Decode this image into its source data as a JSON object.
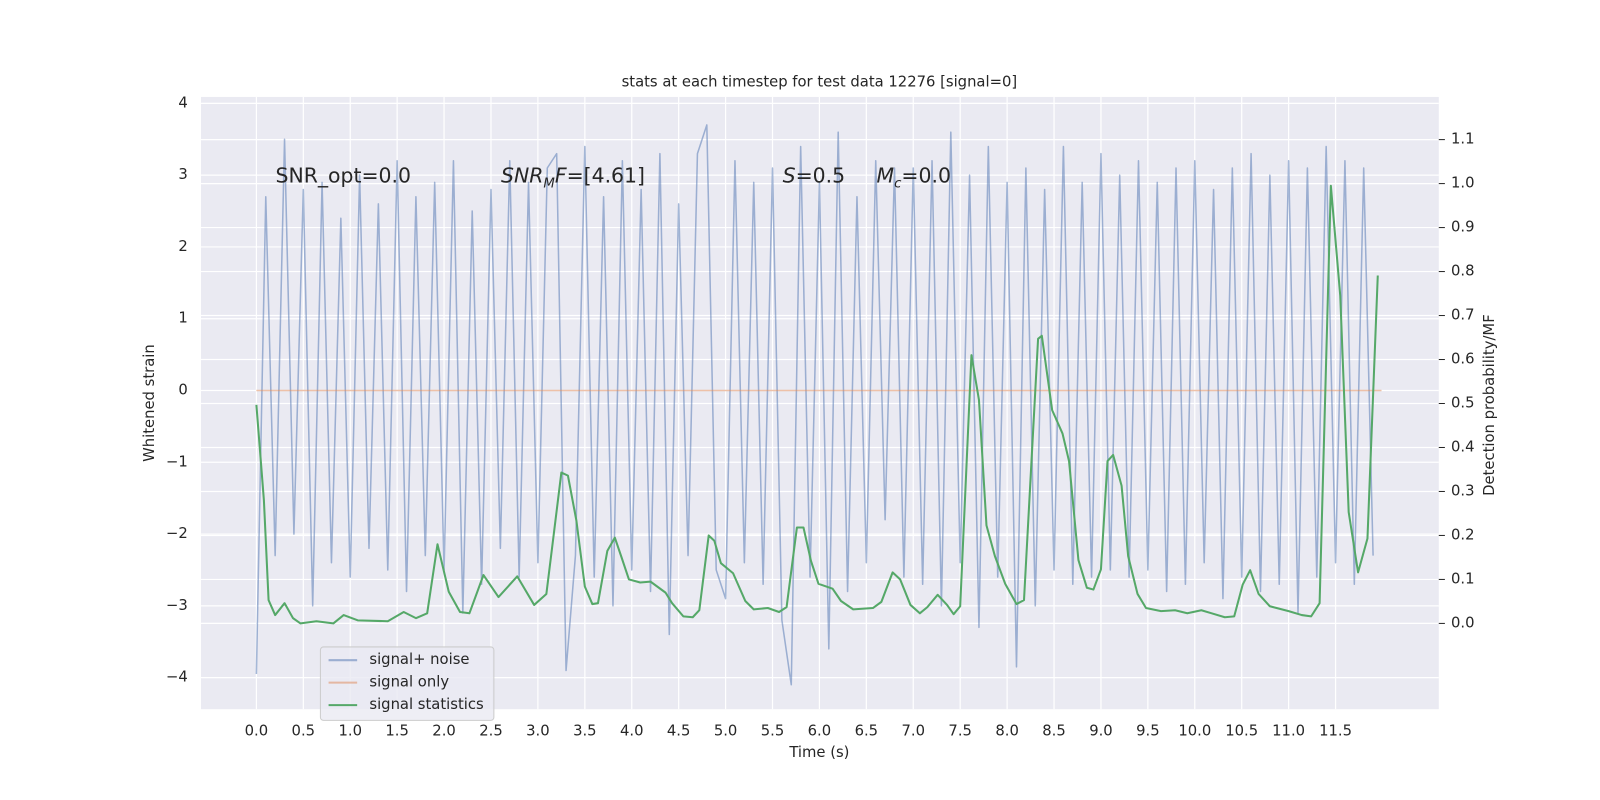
{
  "chart_data": {
    "type": "line",
    "title": "stats at each timestep for test data 12276 [signal=0]",
    "xlabel": "Time (s)",
    "ylabel": "Whitened strain",
    "y2label": "Detection probability/MF",
    "grid": true,
    "legend": "lower left",
    "xlim": [
      -0.59,
      12.6
    ],
    "ylim": [
      -4.44,
      4.09
    ],
    "y2lim": [
      -0.195,
      1.197
    ],
    "xticks": [
      {
        "value": 0,
        "label": "0.0"
      },
      0.5,
      {
        "value": 1,
        "label": "1.0"
      },
      1.5,
      {
        "value": 2,
        "label": "2.0"
      },
      2.5,
      {
        "value": 3,
        "label": "3.0"
      },
      3.5,
      {
        "value": 4,
        "label": "4.0"
      },
      4.5,
      {
        "value": 5,
        "label": "5.0"
      },
      5.5,
      {
        "value": 6,
        "label": "6.0"
      },
      6.5,
      {
        "value": 7,
        "label": "7.0"
      },
      7.5,
      {
        "value": 8,
        "label": "8.0"
      },
      8.5,
      {
        "value": 9,
        "label": "9.0"
      },
      9.5,
      {
        "value": 10,
        "label": "10.0"
      },
      10.5,
      {
        "value": 11,
        "label": "11.0"
      },
      11.5
    ],
    "yticks": [
      {
        "value": -4,
        "label": "−4"
      },
      {
        "value": -3,
        "label": "−3"
      },
      {
        "value": -2,
        "label": "−2"
      },
      {
        "value": -1,
        "label": "−1"
      },
      0,
      1,
      2,
      3,
      4
    ],
    "y2ticks": [
      {
        "value": 0,
        "label": "0.0"
      },
      0.1,
      0.2,
      0.3,
      0.4,
      0.5,
      0.6,
      0.7,
      0.8,
      0.9,
      {
        "value": 1,
        "label": "1.0"
      },
      1.1
    ],
    "annotations": [
      [
        "SNR_opt=0.0"
      ],
      [
        "SNR",
        "M",
        "F",
        "=[4.61]"
      ],
      [
        "S",
        "=0.5"
      ],
      [
        "M",
        "c",
        "=0.0"
      ]
    ],
    "series": [
      {
        "name": "signal+ noise",
        "color": "#4c72b0",
        "x": [
          0.0,
          0.1,
          0.2,
          0.3,
          0.4,
          0.5,
          0.6,
          0.7,
          0.8,
          0.9,
          1.0,
          1.1,
          1.2,
          1.3,
          1.4,
          1.5,
          1.6,
          1.7,
          1.8,
          1.9,
          2.0,
          2.1,
          2.2,
          2.3,
          2.4,
          2.5,
          2.6,
          2.7,
          2.8,
          2.9,
          3.0,
          3.1,
          3.2,
          3.3,
          3.4,
          3.5,
          3.6,
          3.7,
          3.8,
          3.9,
          4.0,
          4.1,
          4.2,
          4.3,
          4.4,
          4.5,
          4.6,
          4.7,
          4.8,
          4.9,
          5.0,
          5.1,
          5.2,
          5.3,
          5.4,
          5.5,
          5.6,
          5.7,
          5.8,
          5.9,
          6.0,
          6.1,
          6.2,
          6.3,
          6.4,
          6.5,
          6.6,
          6.7,
          6.8,
          6.9,
          7.0,
          7.1,
          7.2,
          7.3,
          7.4,
          7.5,
          7.6,
          7.7,
          7.8,
          7.9,
          8.0,
          8.1,
          8.2,
          8.3,
          8.4,
          8.5,
          8.6,
          8.7,
          8.8,
          8.9,
          9.0,
          9.1,
          9.2,
          9.3,
          9.4,
          9.5,
          9.6,
          9.7,
          9.8,
          9.9,
          10.0,
          10.1,
          10.2,
          10.3,
          10.4,
          10.5,
          10.6,
          10.7,
          10.8,
          10.9,
          11.0,
          11.1,
          11.2,
          11.3,
          11.4,
          11.5,
          11.6,
          11.7,
          11.8,
          11.9
        ],
        "values": [
          -3.95,
          2.7,
          -2.3,
          3.5,
          -2.0,
          2.8,
          -3.0,
          2.9,
          -2.4,
          2.4,
          -2.6,
          3.0,
          -2.2,
          2.6,
          -2.5,
          3.2,
          -2.8,
          2.7,
          -2.3,
          2.9,
          -2.5,
          3.2,
          -3.1,
          2.5,
          -2.7,
          2.8,
          -2.2,
          3.2,
          -2.6,
          2.9,
          -2.4,
          3.1,
          3.3,
          -3.9,
          -2.3,
          3.4,
          -2.6,
          2.7,
          -3.0,
          3.2,
          -2.5,
          2.8,
          -2.8,
          3.3,
          -3.4,
          2.6,
          -2.3,
          3.3,
          3.7,
          -2.5,
          -2.9,
          3.2,
          -2.4,
          2.9,
          -2.7,
          3.1,
          -3.2,
          -4.1,
          3.4,
          -2.6,
          2.9,
          -3.6,
          3.6,
          -2.8,
          2.7,
          -2.4,
          3.2,
          -1.8,
          3.1,
          -2.6,
          3.1,
          -2.7,
          3.2,
          -3.0,
          3.6,
          -2.4,
          3.0,
          -3.3,
          3.4,
          -2.6,
          2.9,
          -3.85,
          3.1,
          -3.0,
          2.8,
          -2.5,
          3.4,
          -2.7,
          2.9,
          -2.6,
          3.3,
          -2.5,
          3.0,
          -2.6,
          3.2,
          -2.5,
          2.9,
          -2.8,
          3.1,
          -2.7,
          3.2,
          -2.4,
          2.8,
          -2.9,
          3.1,
          -2.6,
          3.3,
          -2.8,
          3.0,
          -2.7,
          3.2,
          -3.1,
          3.1,
          -2.6,
          3.4,
          -2.4,
          3.2,
          -2.7,
          3.1,
          -2.3
        ]
      },
      {
        "name": "signal only",
        "color": "#dd8452",
        "x": [
          0.0,
          11.99
        ],
        "values": [
          0,
          0
        ]
      },
      {
        "name": "signal statistics",
        "color": "#55a868",
        "axis": "y2",
        "x": [
          0,
          0.08,
          0.13,
          0.2,
          0.3,
          0.39,
          0.47,
          0.64,
          0.82,
          0.93,
          1.08,
          1.4,
          1.57,
          1.7,
          1.82,
          1.93,
          2.05,
          2.17,
          2.27,
          2.42,
          2.58,
          2.78,
          2.96,
          3.09,
          3.15,
          3.25,
          3.32,
          3.41,
          3.5,
          3.58,
          3.64,
          3.74,
          3.82,
          3.89,
          3.97,
          4.09,
          4.2,
          4.36,
          4.43,
          4.55,
          4.65,
          4.72,
          4.82,
          4.88,
          4.95,
          5.08,
          5.21,
          5.3,
          5.45,
          5.57,
          5.65,
          5.76,
          5.83,
          5.91,
          5.99,
          6.14,
          6.23,
          6.36,
          6.57,
          6.66,
          6.78,
          6.86,
          6.97,
          7.07,
          7.15,
          7.26,
          7.36,
          7.43,
          7.5,
          7.62,
          7.7,
          7.78,
          7.87,
          7.98,
          8.1,
          8.18,
          8.33,
          8.37,
          8.48,
          8.59,
          8.66,
          8.76,
          8.85,
          8.92,
          9.0,
          9.07,
          9.13,
          9.22,
          9.29,
          9.39,
          9.48,
          9.64,
          9.79,
          9.92,
          10.07,
          10.18,
          10.32,
          10.42,
          10.51,
          10.59,
          10.68,
          10.8,
          11.0,
          11.14,
          11.24,
          11.33,
          11.45,
          11.55,
          11.64,
          11.74,
          11.84,
          11.95
        ],
        "values": [
          0.497,
          0.28,
          0.053,
          0.019,
          0.046,
          0.012,
          0.0,
          0.005,
          0.0,
          0.019,
          0.007,
          0.005,
          0.026,
          0.012,
          0.023,
          0.18,
          0.072,
          0.026,
          0.023,
          0.11,
          0.06,
          0.107,
          0.042,
          0.067,
          0.17,
          0.343,
          0.336,
          0.234,
          0.084,
          0.044,
          0.046,
          0.165,
          0.195,
          0.151,
          0.1,
          0.093,
          0.095,
          0.07,
          0.046,
          0.016,
          0.014,
          0.03,
          0.2,
          0.188,
          0.137,
          0.114,
          0.051,
          0.032,
          0.035,
          0.026,
          0.037,
          0.218,
          0.218,
          0.142,
          0.09,
          0.079,
          0.051,
          0.032,
          0.035,
          0.049,
          0.116,
          0.1,
          0.042,
          0.023,
          0.037,
          0.065,
          0.042,
          0.021,
          0.039,
          0.61,
          0.508,
          0.223,
          0.153,
          0.09,
          0.044,
          0.053,
          0.647,
          0.654,
          0.485,
          0.432,
          0.369,
          0.144,
          0.081,
          0.077,
          0.123,
          0.369,
          0.383,
          0.313,
          0.153,
          0.067,
          0.035,
          0.028,
          0.03,
          0.023,
          0.03,
          0.023,
          0.014,
          0.016,
          0.088,
          0.121,
          0.067,
          0.039,
          0.028,
          0.019,
          0.016,
          0.046,
          0.995,
          0.745,
          0.253,
          0.116,
          0.193,
          0.791
        ]
      }
    ]
  }
}
